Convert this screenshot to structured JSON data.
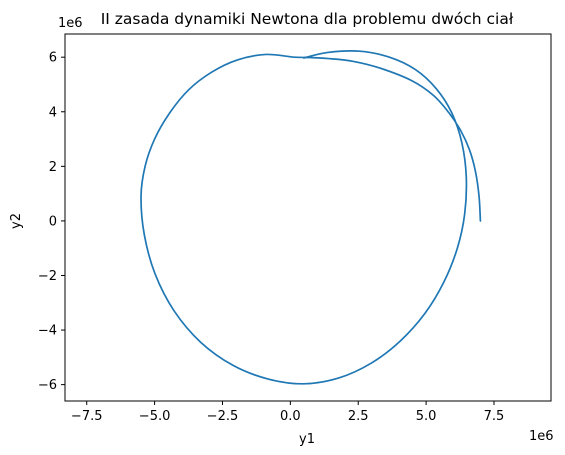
{
  "chart_data": {
    "type": "line",
    "title": "II zasada dynamiki Newtona dla problemu dwóch ciał",
    "xlabel": "y1",
    "ylabel": "y2",
    "x_offset_label": "1e6",
    "y_offset_label": "1e6",
    "xlim": [
      -8.3,
      9.6
    ],
    "ylim": [
      -6.6,
      6.85
    ],
    "scale": 1000000,
    "x_ticks": [
      -7.5,
      -5.0,
      -2.5,
      0.0,
      2.5,
      5.0,
      7.5
    ],
    "x_tick_labels": [
      "−7.5",
      "−5.0",
      "−2.5",
      "0.0",
      "2.5",
      "5.0",
      "7.5"
    ],
    "y_ticks": [
      -6,
      -4,
      -2,
      0,
      2,
      4,
      6
    ],
    "y_tick_labels": [
      "−6",
      "−4",
      "−2",
      "0",
      "2",
      "4",
      "6"
    ],
    "grid": false,
    "line_color": "#1f77b4",
    "series": [
      {
        "x": [
          7.0,
          6.95,
          6.82,
          6.6,
          6.28,
          5.85,
          5.27,
          4.45,
          3.3,
          2.3,
          1.4,
          0.7,
          0.14,
          -0.9,
          -1.95,
          -2.9,
          -3.75,
          -4.45,
          -5.0,
          -5.35,
          -5.5,
          -5.38,
          -4.98,
          -4.28,
          -3.3,
          -2.1,
          -0.8,
          0.5,
          1.8,
          3.0,
          4.05,
          4.95,
          5.65,
          6.15,
          6.42,
          6.48,
          6.32,
          5.95,
          5.37,
          4.6,
          3.65,
          2.55,
          1.35,
          0.5
        ],
        "y": [
          0.0,
          0.9,
          1.8,
          2.6,
          3.3,
          3.95,
          4.6,
          5.15,
          5.6,
          5.85,
          5.95,
          5.99,
          6.0,
          6.1,
          5.9,
          5.45,
          4.8,
          3.95,
          3.0,
          2.0,
          0.9,
          -0.5,
          -1.95,
          -3.3,
          -4.45,
          -5.3,
          -5.8,
          -5.97,
          -5.75,
          -5.2,
          -4.4,
          -3.4,
          -2.25,
          -1.0,
          0.25,
          1.6,
          2.85,
          3.95,
          4.85,
          5.55,
          6.0,
          6.22,
          6.17,
          5.97
        ]
      }
    ]
  }
}
